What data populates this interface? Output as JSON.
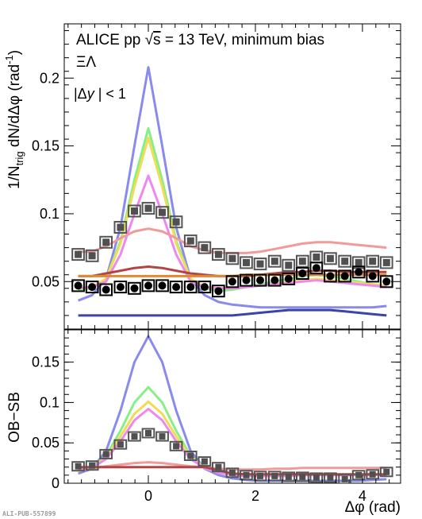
{
  "chart_data": [
    {
      "type": "line",
      "panel": "top",
      "annotations": [
        "ALICE pp √s = 13 TeV, minimum bias",
        "ΞΛ",
        "|Δy| < 1"
      ],
      "ylabel": "1/N_trig dN/dΔφ (rad⁻¹)",
      "xlim": [
        -1.5708,
        4.7124
      ],
      "ylim": [
        0.015,
        0.24
      ],
      "yticks": [
        0.05,
        0.1,
        0.15,
        0.2
      ],
      "ytick_labels": [
        "0.05",
        "0.1",
        "0.15",
        "0.2"
      ],
      "x": [
        -1.31,
        -1.05,
        -0.79,
        -0.52,
        -0.26,
        0.0,
        0.26,
        0.52,
        0.79,
        1.05,
        1.31,
        1.57,
        1.83,
        2.09,
        2.36,
        2.62,
        2.88,
        3.14,
        3.4,
        3.67,
        3.93,
        4.19,
        4.45
      ],
      "series": [
        {
          "color": "#505050",
          "marker": "square",
          "values": [
            0.07,
            0.069,
            0.079,
            0.09,
            0.102,
            0.104,
            0.101,
            0.094,
            0.08,
            0.075,
            0.07,
            0.067,
            0.064,
            0.063,
            0.065,
            0.062,
            0.065,
            0.068,
            0.067,
            0.065,
            0.064,
            0.065,
            0.064
          ]
        },
        {
          "color": "#000000",
          "marker": "circle",
          "values": [
            0.047,
            0.046,
            0.044,
            0.046,
            0.045,
            0.047,
            0.047,
            0.046,
            0.046,
            0.046,
            0.043,
            0.05,
            0.051,
            0.051,
            0.051,
            0.052,
            0.056,
            0.06,
            0.054,
            0.054,
            0.057,
            0.054,
            0.05
          ]
        },
        {
          "color": "#8a8aee",
          "marker": "line",
          "values": [
            0.036,
            0.04,
            0.052,
            0.09,
            0.15,
            0.208,
            0.15,
            0.09,
            0.052,
            0.04,
            0.035,
            0.033,
            0.032,
            0.031,
            0.031,
            0.031,
            0.031,
            0.031,
            0.031,
            0.031,
            0.031,
            0.031,
            0.032
          ]
        },
        {
          "color": "#88ee88",
          "marker": "line",
          "values": [
            0.044,
            0.045,
            0.052,
            0.08,
            0.125,
            0.163,
            0.125,
            0.08,
            0.052,
            0.045,
            0.043,
            0.044,
            0.046,
            0.048,
            0.05,
            0.052,
            0.054,
            0.055,
            0.054,
            0.052,
            0.05,
            0.048,
            0.047
          ]
        },
        {
          "color": "#eedd55",
          "marker": "line",
          "values": [
            0.045,
            0.046,
            0.052,
            0.078,
            0.12,
            0.156,
            0.12,
            0.078,
            0.052,
            0.046,
            0.045,
            0.045,
            0.046,
            0.047,
            0.048,
            0.05,
            0.051,
            0.052,
            0.051,
            0.05,
            0.049,
            0.048,
            0.047
          ]
        },
        {
          "color": "#ee88ee",
          "marker": "line",
          "values": [
            0.045,
            0.046,
            0.05,
            0.07,
            0.1,
            0.128,
            0.1,
            0.07,
            0.05,
            0.046,
            0.045,
            0.045,
            0.046,
            0.047,
            0.048,
            0.049,
            0.05,
            0.051,
            0.05,
            0.049,
            0.048,
            0.047,
            0.046
          ]
        },
        {
          "color": "#f09a9a",
          "marker": "line",
          "values": [
            0.072,
            0.072,
            0.076,
            0.082,
            0.087,
            0.089,
            0.087,
            0.082,
            0.076,
            0.073,
            0.071,
            0.071,
            0.071,
            0.072,
            0.074,
            0.076,
            0.078,
            0.079,
            0.079,
            0.078,
            0.077,
            0.076,
            0.075
          ]
        },
        {
          "color": "#b04545",
          "marker": "line",
          "values": [
            0.054,
            0.054,
            0.056,
            0.058,
            0.06,
            0.061,
            0.06,
            0.058,
            0.056,
            0.055,
            0.054,
            0.054,
            0.054,
            0.055,
            0.056,
            0.057,
            0.057,
            0.058,
            0.058,
            0.057,
            0.057,
            0.057,
            0.057
          ]
        },
        {
          "color": "#e08a30",
          "marker": "line",
          "values": [
            0.054,
            0.054,
            0.054,
            0.054,
            0.054,
            0.054,
            0.054,
            0.054,
            0.054,
            0.054,
            0.054,
            0.054,
            0.055,
            0.055,
            0.055,
            0.055,
            0.055,
            0.055,
            0.055,
            0.055,
            0.055,
            0.055,
            0.055
          ]
        },
        {
          "color": "#3a44aa",
          "marker": "line",
          "values": [
            0.025,
            0.025,
            0.025,
            0.025,
            0.025,
            0.025,
            0.025,
            0.025,
            0.025,
            0.025,
            0.025,
            0.025,
            0.026,
            0.027,
            0.028,
            0.029,
            0.029,
            0.029,
            0.029,
            0.028,
            0.027,
            0.026,
            0.025
          ]
        }
      ]
    },
    {
      "type": "line",
      "panel": "bottom",
      "ylabel": "OB−SB",
      "xlabel": "Δφ (rad)",
      "xlim": [
        -1.5708,
        4.7124
      ],
      "ylim": [
        0,
        0.19
      ],
      "yticks": [
        0,
        0.05,
        0.1,
        0.15
      ],
      "ytick_labels": [
        "0",
        "0.05",
        "0.1",
        "0.15"
      ],
      "xticks": [
        0,
        2,
        4
      ],
      "xtick_labels": [
        "0",
        "2",
        "4"
      ],
      "x": [
        -1.31,
        -1.05,
        -0.79,
        -0.52,
        -0.26,
        0.0,
        0.26,
        0.52,
        0.79,
        1.05,
        1.31,
        1.57,
        1.83,
        2.09,
        2.36,
        2.62,
        2.88,
        3.14,
        3.4,
        3.67,
        3.93,
        4.19,
        4.45
      ],
      "series": [
        {
          "color": "#505050",
          "marker": "square",
          "values": [
            0.021,
            0.022,
            0.036,
            0.048,
            0.058,
            0.062,
            0.058,
            0.046,
            0.034,
            0.027,
            0.02,
            0.013,
            0.01,
            0.009,
            0.009,
            0.008,
            0.008,
            0.007,
            0.007,
            0.005,
            0.01,
            0.011,
            0.014
          ]
        },
        {
          "color": "#8a8aee",
          "marker": "line",
          "values": [
            0.012,
            0.018,
            0.04,
            0.09,
            0.15,
            0.182,
            0.15,
            0.09,
            0.04,
            0.018,
            0.01,
            0.006,
            0.004,
            0.003,
            0.003,
            0.003,
            0.003,
            0.003,
            0.003,
            0.003,
            0.003,
            0.004,
            0.005
          ]
        },
        {
          "color": "#88ee88",
          "marker": "line",
          "values": [
            0.015,
            0.019,
            0.034,
            0.065,
            0.1,
            0.119,
            0.1,
            0.065,
            0.034,
            0.019,
            0.013,
            0.01,
            0.009,
            0.009,
            0.009,
            0.01,
            0.011,
            0.011,
            0.011,
            0.01,
            0.01,
            0.01,
            0.011
          ]
        },
        {
          "color": "#eedd55",
          "marker": "line",
          "values": [
            0.015,
            0.019,
            0.032,
            0.058,
            0.086,
            0.101,
            0.086,
            0.058,
            0.032,
            0.019,
            0.013,
            0.01,
            0.009,
            0.009,
            0.009,
            0.01,
            0.011,
            0.011,
            0.011,
            0.01,
            0.01,
            0.01,
            0.011
          ]
        },
        {
          "color": "#ee88ee",
          "marker": "line",
          "values": [
            0.016,
            0.019,
            0.03,
            0.052,
            0.078,
            0.092,
            0.078,
            0.052,
            0.03,
            0.019,
            0.013,
            0.01,
            0.009,
            0.009,
            0.009,
            0.009,
            0.01,
            0.01,
            0.01,
            0.01,
            0.01,
            0.01,
            0.011
          ]
        },
        {
          "color": "#f09a9a",
          "marker": "line",
          "values": [
            0.018,
            0.019,
            0.021,
            0.023,
            0.025,
            0.026,
            0.025,
            0.023,
            0.021,
            0.02,
            0.018,
            0.017,
            0.017,
            0.017,
            0.018,
            0.018,
            0.019,
            0.019,
            0.019,
            0.019,
            0.019,
            0.019,
            0.019
          ]
        },
        {
          "color": "#b04545",
          "marker": "line",
          "values": [
            0.02,
            0.02,
            0.02,
            0.02,
            0.02,
            0.02,
            0.02,
            0.02,
            0.02,
            0.02,
            0.016,
            0.012,
            0.011,
            0.011,
            0.011,
            0.011,
            0.011,
            0.011,
            0.011,
            0.011,
            0.011,
            0.011,
            0.011
          ]
        }
      ]
    }
  ],
  "figure": {
    "annotation_line1": "ALICE pp ",
    "sqrt_label": "√",
    "annotation_s": "s",
    "annotation_line1_rest": " = 13 TeV, minimum bias",
    "annotation_line2": "ΞΛ",
    "annotation_line3_a": "|Δ",
    "annotation_line3_y": "y",
    "annotation_line3_b": " | < 1",
    "top_ylabel_main": "1/N",
    "top_ylabel_sub": "trig",
    "top_ylabel_rest": " dN/dΔφ (rad",
    "top_ylabel_sup": "-1",
    "top_ylabel_end": ")",
    "bottom_ylabel": "OB−SB",
    "xlabel": "Δφ (rad)",
    "publication_id": "ALI-PUB-557899"
  }
}
